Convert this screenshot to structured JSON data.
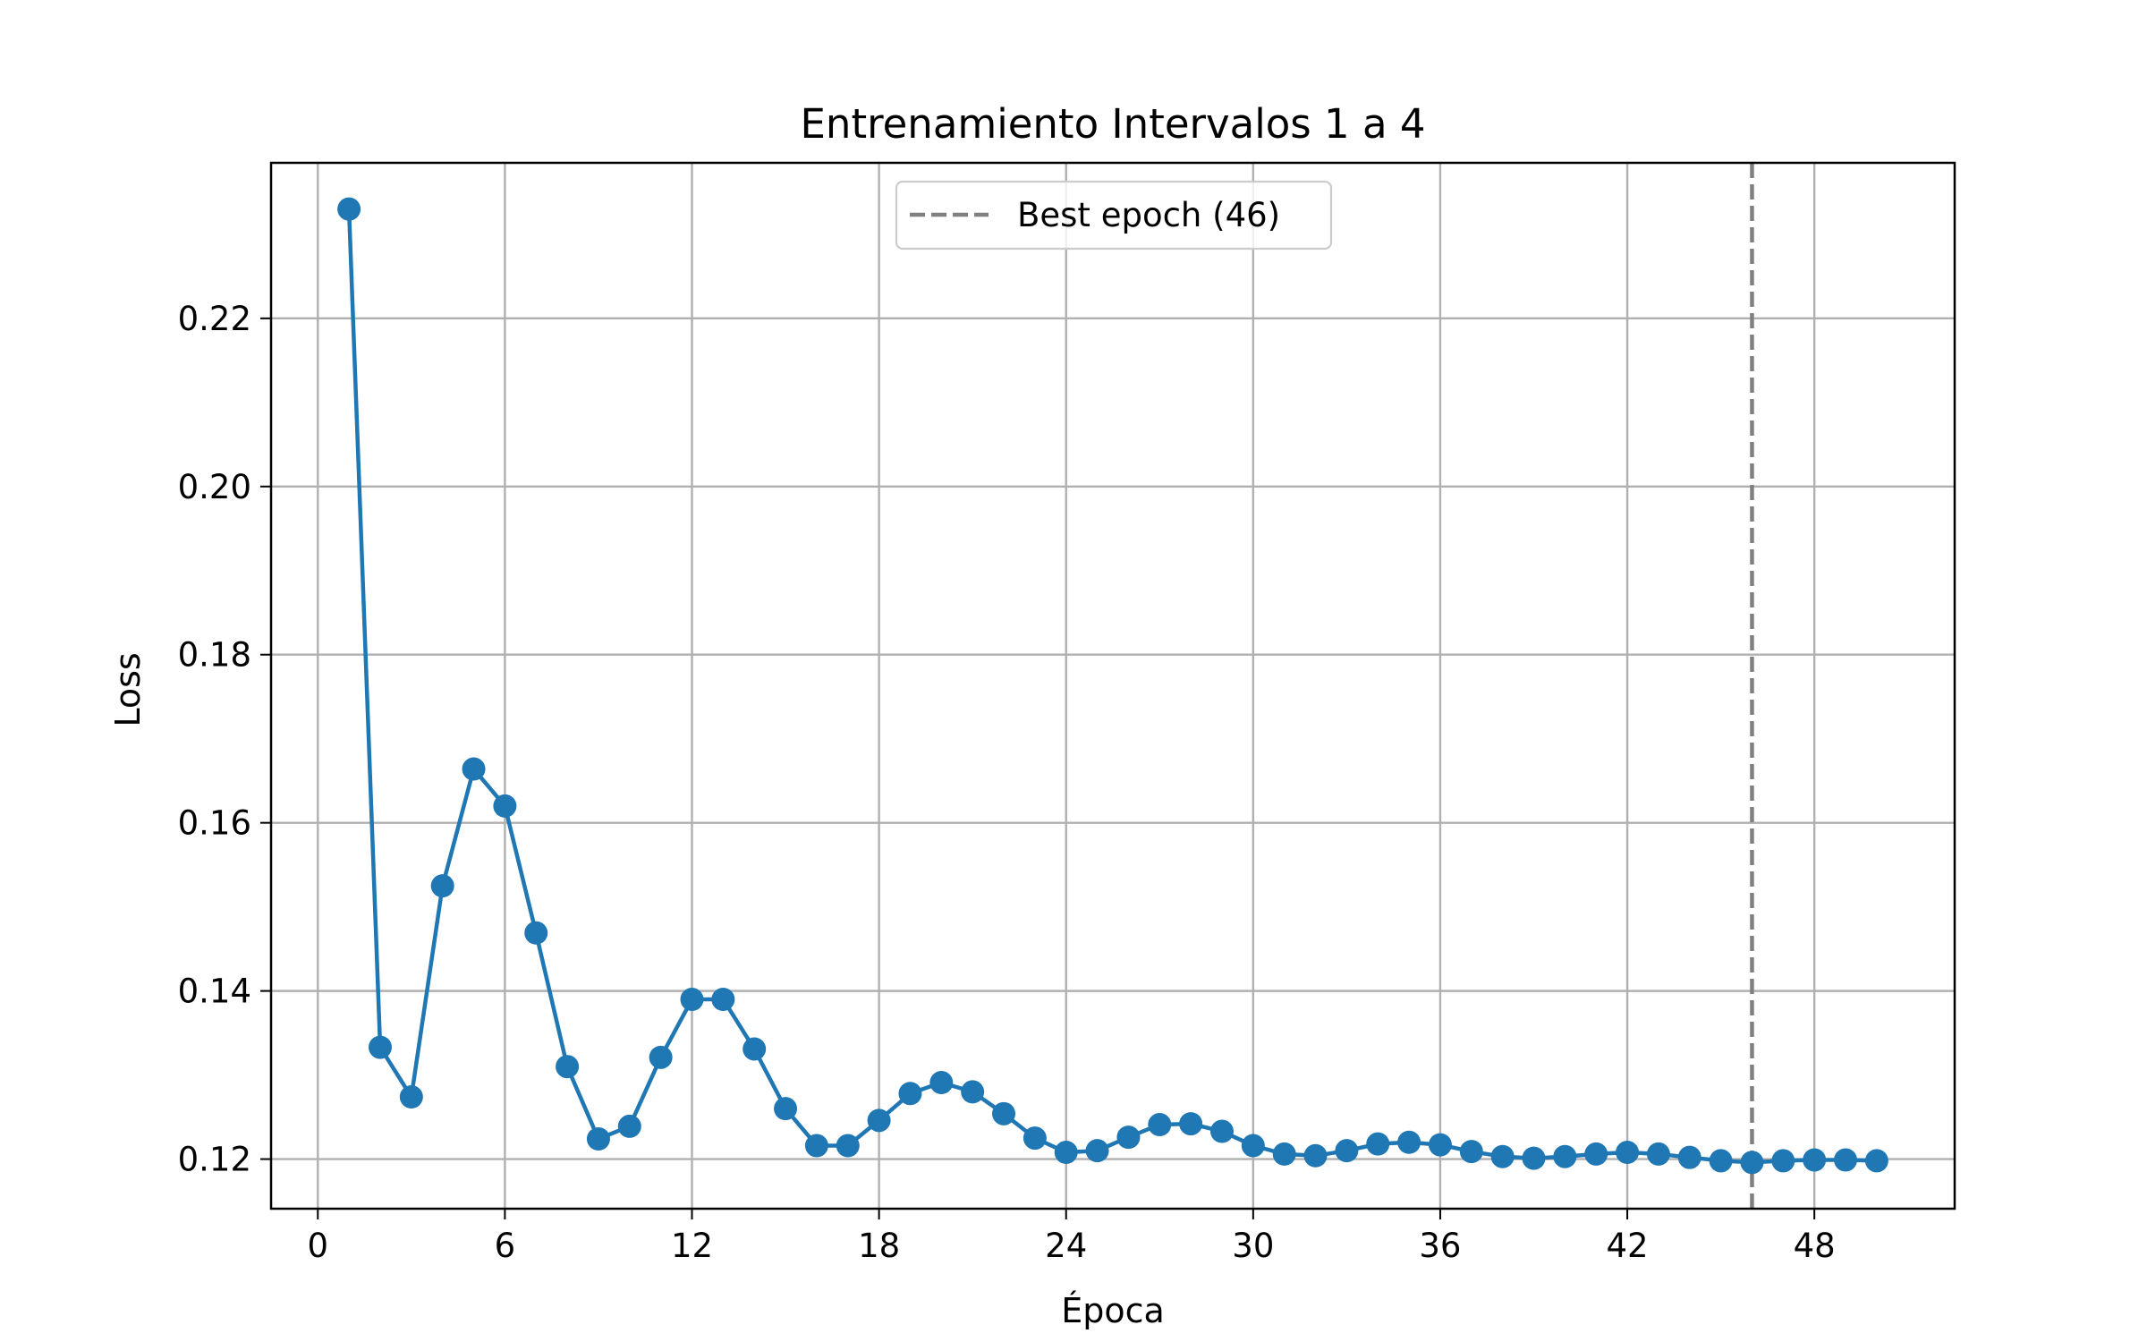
{
  "chart_data": {
    "type": "line",
    "title": "Entrenamiento Intervalos 1 a 4",
    "xlabel": "Época",
    "ylabel": "Loss",
    "xlim": [
      -1.5,
      52.5
    ],
    "ylim": [
      0.1141,
      0.2385
    ],
    "xticks": [
      0,
      6,
      12,
      18,
      24,
      30,
      36,
      42,
      48
    ],
    "yticks": [
      0.12,
      0.14,
      0.16,
      0.18,
      0.2,
      0.22
    ],
    "ytick_labels": [
      "0.12",
      "0.14",
      "0.16",
      "0.18",
      "0.20",
      "0.22"
    ],
    "grid": true,
    "legend_position": "upper center",
    "series": [
      {
        "color": "#1f77b4",
        "marker": "circle",
        "x": [
          1,
          2,
          3,
          4,
          5,
          6,
          7,
          8,
          9,
          10,
          11,
          12,
          13,
          14,
          15,
          16,
          17,
          18,
          19,
          20,
          21,
          22,
          23,
          24,
          25,
          26,
          27,
          28,
          29,
          30,
          31,
          32,
          33,
          34,
          35,
          36,
          37,
          38,
          39,
          40,
          41,
          42,
          43,
          44,
          45,
          46,
          47,
          48,
          49,
          50
        ],
        "y": [
          0.233,
          0.1333,
          0.1274,
          0.1525,
          0.1664,
          0.162,
          0.1469,
          0.131,
          0.1224,
          0.1239,
          0.1321,
          0.139,
          0.139,
          0.1331,
          0.126,
          0.1216,
          0.1216,
          0.1246,
          0.1278,
          0.1291,
          0.128,
          0.1254,
          0.1225,
          0.1208,
          0.121,
          0.1226,
          0.1241,
          0.1242,
          0.1233,
          0.1216,
          0.1206,
          0.1204,
          0.121,
          0.1218,
          0.122,
          0.1217,
          0.1209,
          0.1203,
          0.1201,
          0.1203,
          0.1206,
          0.1208,
          0.1206,
          0.1202,
          0.1198,
          0.1196,
          0.1198,
          0.1199,
          0.1199,
          0.1198
        ]
      }
    ],
    "reference_lines": [
      {
        "orientation": "vertical",
        "x": 46,
        "label": "Best epoch (46)",
        "color": "#808080",
        "style": "dashed"
      }
    ]
  }
}
